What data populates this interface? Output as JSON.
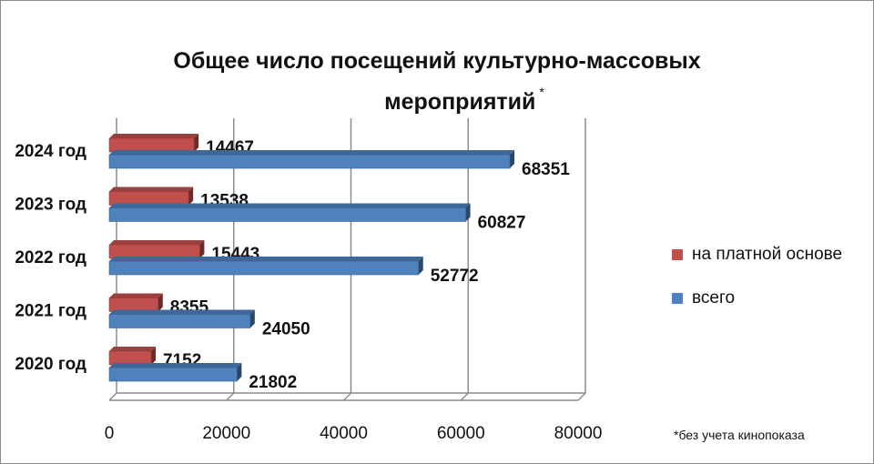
{
  "title_line1": "Общее число посещений культурно-массовых",
  "title_line2": "мероприятий",
  "title_mark": "*",
  "footnote": "*без учета кинопоказа",
  "colors": {
    "paid": "#c0504d",
    "total": "#4f81bd",
    "grid": "#8c8c8c"
  },
  "chart_data": {
    "type": "bar",
    "orientation": "horizontal",
    "categories": [
      "2024 год",
      "2023 год",
      "2022 год",
      "2021 год",
      "2020 год"
    ],
    "series": [
      {
        "name": "на платной основе",
        "values": [
          14467,
          13538,
          15443,
          8355,
          7152
        ]
      },
      {
        "name": "всего",
        "values": [
          68351,
          60827,
          52772,
          24050,
          21802
        ]
      }
    ],
    "xlim": [
      0,
      80000
    ],
    "xticks": [
      0,
      20000,
      40000,
      60000,
      80000
    ],
    "grid": true,
    "legend": "right"
  }
}
